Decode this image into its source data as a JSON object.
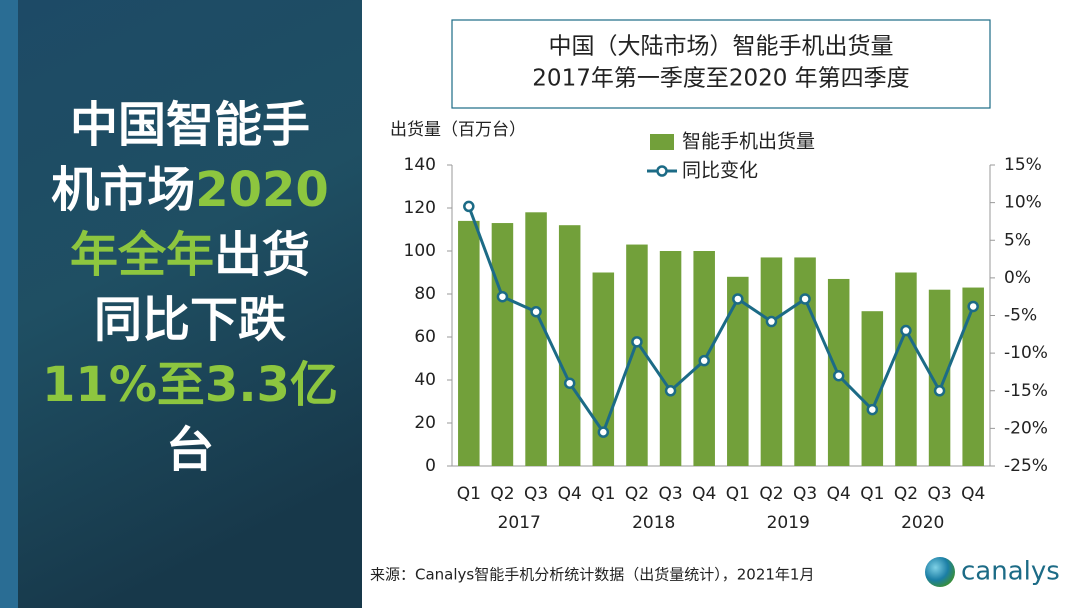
{
  "headline": {
    "lines": [
      [
        {
          "text": "中国智能手",
          "highlight": false
        }
      ],
      [
        {
          "text": "机市场",
          "highlight": false
        },
        {
          "text": "2020",
          "highlight": true
        }
      ],
      [
        {
          "text": "年全年",
          "highlight": true
        },
        {
          "text": "出货",
          "highlight": false
        }
      ],
      [
        {
          "text": "同比下跌",
          "highlight": false
        }
      ],
      [
        {
          "text": "11%至3.3亿",
          "highlight": true
        }
      ],
      [
        {
          "text": "台",
          "highlight": false
        }
      ]
    ]
  },
  "chart_data": {
    "type": "bar_line",
    "title": [
      "中国（大陆市场）智能手机出货量",
      "2017年第一季度至2020 年第四季度"
    ],
    "y_label": "出货量（百万台）",
    "categories": [
      "Q1",
      "Q2",
      "Q3",
      "Q4",
      "Q1",
      "Q2",
      "Q3",
      "Q4",
      "Q1",
      "Q2",
      "Q3",
      "Q4",
      "Q1",
      "Q2",
      "Q3",
      "Q4"
    ],
    "year_labels": [
      "2017",
      "2018",
      "2019",
      "2020"
    ],
    "series": [
      {
        "name": "智能手机出货量",
        "type": "bar",
        "color": "#72a03a",
        "values": [
          114,
          113,
          118,
          112,
          90,
          103,
          100,
          100,
          88,
          97,
          97,
          87,
          72,
          90,
          82,
          83
        ]
      },
      {
        "name": "同比变化",
        "type": "line",
        "axis": "y2",
        "color": "#1c6b86",
        "values": [
          9.5,
          -2.5,
          -4.5,
          -14,
          -20.5,
          -8.5,
          -15,
          -11,
          -2.8,
          -5.8,
          -2.8,
          -13,
          -17.5,
          -7,
          -15,
          -3.8
        ]
      }
    ],
    "ylim": [
      0,
      140
    ],
    "yticks": [
      0,
      20,
      40,
      60,
      80,
      100,
      120,
      140
    ],
    "y2lim": [
      -25,
      15
    ],
    "y2ticks": [
      {
        "value": -25,
        "label": "-25%"
      },
      {
        "value": -20,
        "label": "-20%"
      },
      {
        "value": -15,
        "label": "-15%"
      },
      {
        "value": -10,
        "label": "-10%"
      },
      {
        "value": -5,
        "label": "-5%"
      },
      {
        "value": 0,
        "label": "0%"
      },
      {
        "value": 5,
        "label": "5%"
      },
      {
        "value": 10,
        "label": "10%"
      },
      {
        "value": 15,
        "label": "15%"
      }
    ],
    "source": "来源：Canalys智能手机分析统计数据（出货量统计），2021年1月",
    "logo": "canalys"
  }
}
